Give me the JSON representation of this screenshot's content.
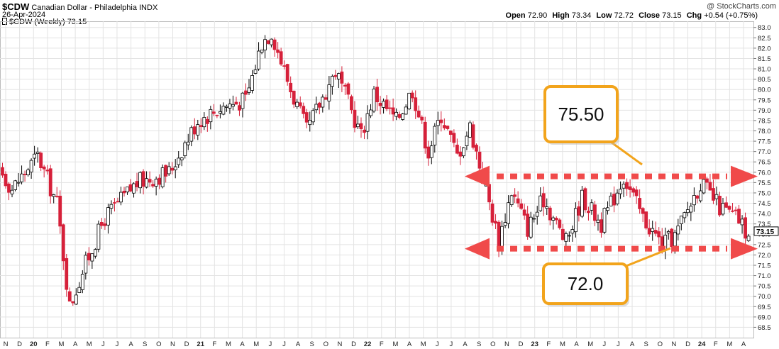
{
  "header": {
    "symbol": "$CDW",
    "name": "Canadian Dollar - Philadelphia",
    "exchange": "INDX",
    "date": "26-Apr-2024",
    "watermark": "@ StockCharts.com",
    "open_label": "Open",
    "open_value": "72.90",
    "high_label": "High",
    "high_value": "73.34",
    "low_label": "Low",
    "low_value": "72.72",
    "close_label": "Close",
    "close_value": "73.15",
    "chg_label": "Chg",
    "chg_value": "+0.54 (+0.75%)"
  },
  "legend": {
    "text": "$CDW (Weekly) 73.15"
  },
  "colors": {
    "up": "#ffffff",
    "up_stroke": "#000000",
    "down": "#d6213a",
    "level": "#f04a4a",
    "callout_border": "#f2a41c",
    "grid": "#e3e3e3"
  },
  "chart_data": {
    "type": "candlestick",
    "title": "$CDW Canadian Dollar - Philadelphia INDX",
    "ylim": [
      68.0,
      83.3
    ],
    "yticks": [
      "68.5",
      "69.0",
      "69.5",
      "70.0",
      "70.5",
      "71.0",
      "71.5",
      "72.0",
      "72.5",
      "73.0",
      "73.5",
      "74.0",
      "74.5",
      "75.0",
      "75.5",
      "76.0",
      "76.5",
      "77.0",
      "77.5",
      "78.0",
      "78.5",
      "79.0",
      "79.5",
      "80.0",
      "80.5",
      "81.0",
      "81.5",
      "82.0",
      "82.5",
      "83.0"
    ],
    "last_price": "73.15",
    "xtick_labels": [
      "N",
      "D",
      "20",
      "F",
      "M",
      "A",
      "M",
      "J",
      "J",
      "A",
      "S",
      "O",
      "N",
      "D",
      "21",
      "F",
      "M",
      "A",
      "M",
      "J",
      "J",
      "A",
      "S",
      "O",
      "N",
      "D",
      "22",
      "F",
      "M",
      "A",
      "M",
      "J",
      "J",
      "A",
      "S",
      "O",
      "N",
      "D",
      "23",
      "F",
      "M",
      "A",
      "M",
      "J",
      "J",
      "A",
      "S",
      "O",
      "N",
      "D",
      "24",
      "F",
      "M",
      "A"
    ],
    "anchors": [
      {
        "date": "2019-10-04",
        "close": 76.7
      },
      {
        "date": "2019-11-15",
        "close": 75.2
      },
      {
        "date": "2020-01-10",
        "close": 76.8
      },
      {
        "date": "2020-02-21",
        "close": 74.5
      },
      {
        "date": "2020-03-20",
        "close": 69.5
      },
      {
        "date": "2020-04-17",
        "close": 71.2
      },
      {
        "date": "2020-06-05",
        "close": 73.8
      },
      {
        "date": "2020-08-14",
        "close": 75.5
      },
      {
        "date": "2020-10-23",
        "close": 76.0
      },
      {
        "date": "2020-12-25",
        "close": 78.5
      },
      {
        "date": "2021-02-19",
        "close": 79.2
      },
      {
        "date": "2021-04-09",
        "close": 79.5
      },
      {
        "date": "2021-05-14",
        "close": 82.3
      },
      {
        "date": "2021-06-04",
        "close": 82.8
      },
      {
        "date": "2021-07-16",
        "close": 80.0
      },
      {
        "date": "2021-08-20",
        "close": 78.0
      },
      {
        "date": "2021-10-22",
        "close": 80.9
      },
      {
        "date": "2021-12-17",
        "close": 77.8
      },
      {
        "date": "2022-01-14",
        "close": 79.8
      },
      {
        "date": "2022-03-04",
        "close": 78.5
      },
      {
        "date": "2022-04-08",
        "close": 80.0
      },
      {
        "date": "2022-05-13",
        "close": 77.0
      },
      {
        "date": "2022-06-10",
        "close": 78.8
      },
      {
        "date": "2022-07-15",
        "close": 76.8
      },
      {
        "date": "2022-08-12",
        "close": 78.2
      },
      {
        "date": "2022-10-14",
        "close": 72.7
      },
      {
        "date": "2022-11-11",
        "close": 75.1
      },
      {
        "date": "2022-12-16",
        "close": 73.3
      },
      {
        "date": "2023-01-20",
        "close": 74.7
      },
      {
        "date": "2023-03-10",
        "close": 72.6
      },
      {
        "date": "2023-04-14",
        "close": 74.8
      },
      {
        "date": "2023-05-26",
        "close": 73.5
      },
      {
        "date": "2023-07-14",
        "close": 75.8
      },
      {
        "date": "2023-08-25",
        "close": 73.8
      },
      {
        "date": "2023-10-06",
        "close": 72.5
      },
      {
        "date": "2023-11-03",
        "close": 72.9
      },
      {
        "date": "2023-12-29",
        "close": 75.5
      },
      {
        "date": "2024-02-09",
        "close": 74.3
      },
      {
        "date": "2024-03-22",
        "close": 73.7
      },
      {
        "date": "2024-04-19",
        "close": 72.6
      },
      {
        "date": "2024-04-26",
        "close": 73.15
      }
    ],
    "annotations": [
      {
        "label": "75.50",
        "level": 75.8
      },
      {
        "label": "72.0",
        "level": 72.3
      }
    ]
  }
}
